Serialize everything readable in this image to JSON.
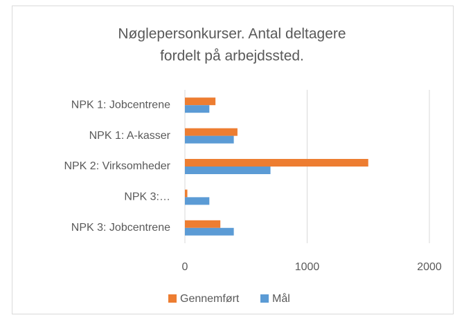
{
  "chart_data": {
    "type": "hbar",
    "title": [
      "Nøglepersonkurser. Antal deltagere",
      "fordelt på arbejdssted."
    ],
    "categories": [
      "NPK 1: Jobcentrene",
      "NPK 1: A-kasser",
      "NPK 2: Virksomheder",
      "NPK 3:…",
      "NPK 3: Jobcentrene"
    ],
    "series": [
      {
        "name": "Gennemført",
        "color": "#ED7D31",
        "values": [
          250,
          430,
          1500,
          20,
          290
        ]
      },
      {
        "name": "Mål",
        "color": "#5B9BD5",
        "values": [
          200,
          400,
          700,
          200,
          400
        ]
      }
    ],
    "xlim": [
      0,
      2000
    ],
    "xticks": [
      0,
      1000,
      2000
    ],
    "grid": true,
    "legend": "bottom"
  }
}
